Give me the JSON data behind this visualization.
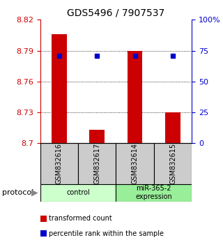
{
  "title": "GDS5496 / 7907537",
  "samples": [
    "GSM832616",
    "GSM832617",
    "GSM832614",
    "GSM832615"
  ],
  "bar_values": [
    8.806,
    8.713,
    8.79,
    8.73
  ],
  "percentile_values": [
    8.785,
    8.785,
    8.785,
    8.785
  ],
  "ylim_left": [
    8.7,
    8.82
  ],
  "ylim_right": [
    0,
    100
  ],
  "yticks_left": [
    8.7,
    8.73,
    8.76,
    8.79,
    8.82
  ],
  "yticks_right": [
    0,
    25,
    50,
    75,
    100
  ],
  "ytick_labels_left": [
    "8.7",
    "8.73",
    "8.76",
    "8.79",
    "8.82"
  ],
  "ytick_labels_right": [
    "0",
    "25",
    "50",
    "75",
    "100%"
  ],
  "bar_color": "#cc0000",
  "marker_color": "#0000cc",
  "group_colors": [
    "#ccffcc",
    "#99ee99"
  ],
  "group_labels": [
    "control",
    "miR-365-2\nexpression"
  ],
  "legend_items": [
    {
      "color": "#cc0000",
      "label": "transformed count"
    },
    {
      "color": "#0000cc",
      "label": "percentile rank within the sample"
    }
  ]
}
